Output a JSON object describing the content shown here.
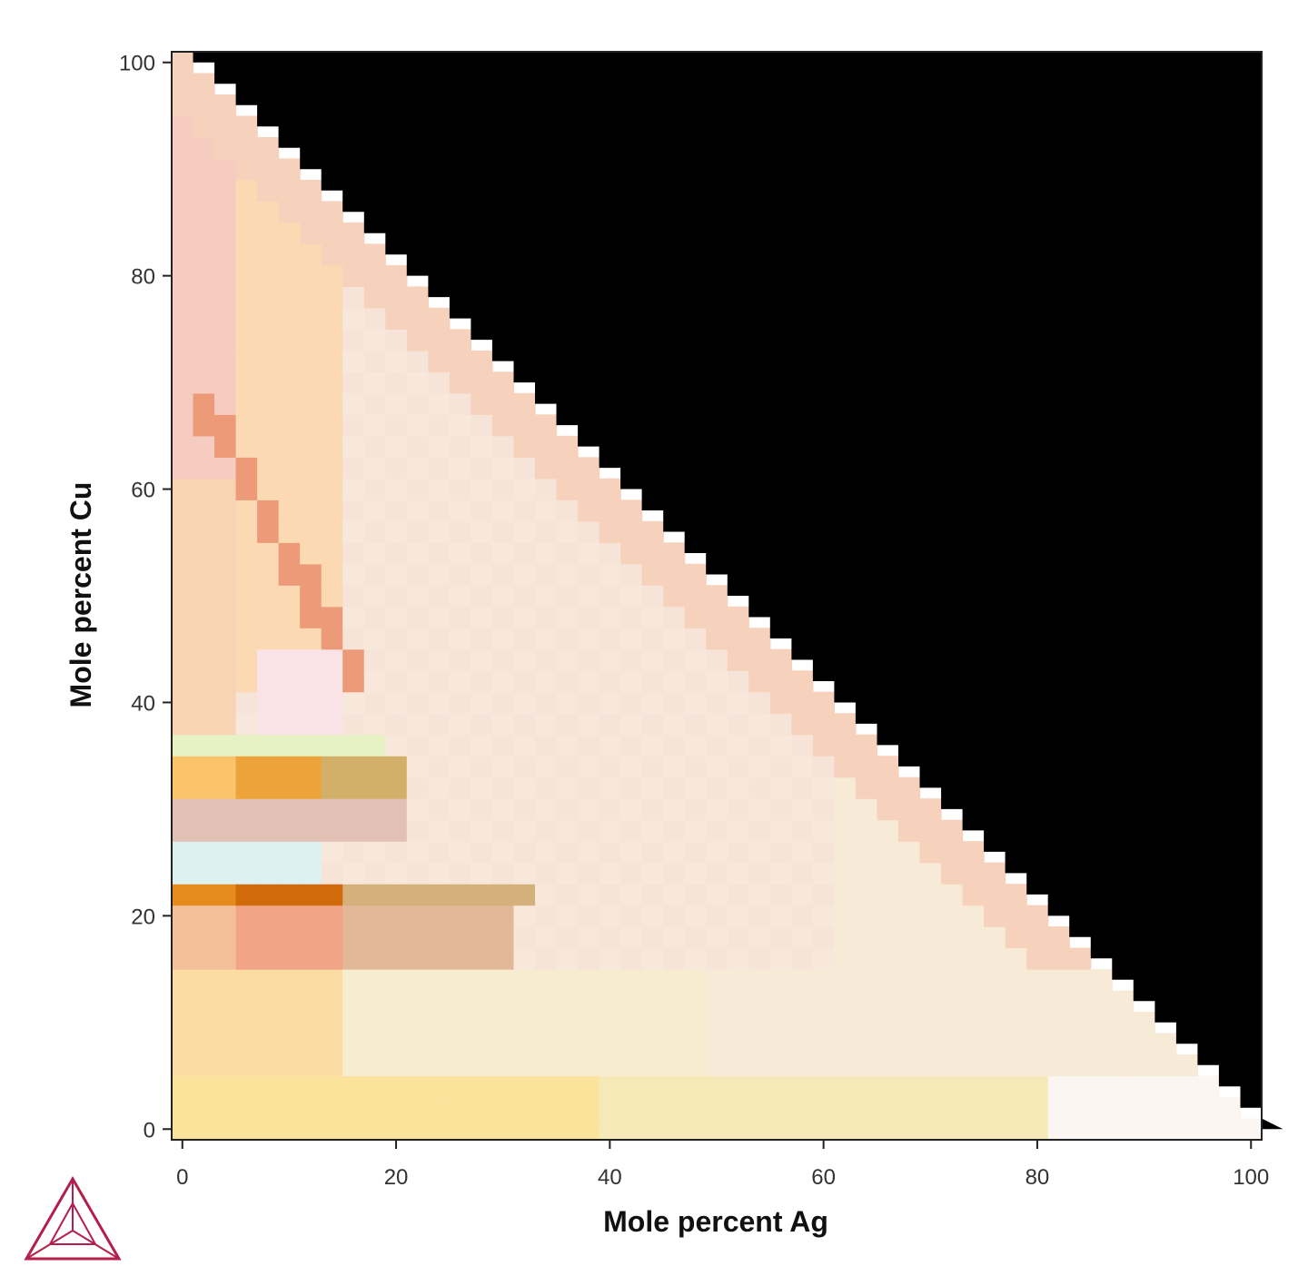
{
  "chart_data": {
    "type": "heatmap",
    "title": "",
    "xlabel": "Mole percent Ag",
    "ylabel": "Mole percent Cu",
    "xlim": [
      -1,
      101
    ],
    "ylim": [
      -1,
      101
    ],
    "xticks": [
      "0",
      "20",
      "40",
      "60",
      "80",
      "100"
    ],
    "yticks": [
      "0",
      "20",
      "40",
      "60",
      "80",
      "100"
    ],
    "grid": false,
    "legend": "none",
    "cell_step_percent": 2,
    "region": "ternary lower triangle (Ag + Cu <= 100); region above the diagonal is black",
    "mask_color": "#000000",
    "representative_colors": {
      "peach": "#f6d2bc",
      "cream": "#f7ead7",
      "pale_yellow": "#f6e9b8",
      "yellow": "#fbe39c",
      "orange": "#e58a1c",
      "dark_orange": "#d06a0a",
      "salmon": "#f2a586",
      "tan": "#d4b07a",
      "light_green": "#e6f2c4",
      "pale_pink": "#f9e3e6",
      "pale_blue": "#dff0f2",
      "near_white": "#fbf6f2"
    }
  },
  "logo": {
    "name": "thermo-calc-logo",
    "color": "#b41e4a"
  }
}
